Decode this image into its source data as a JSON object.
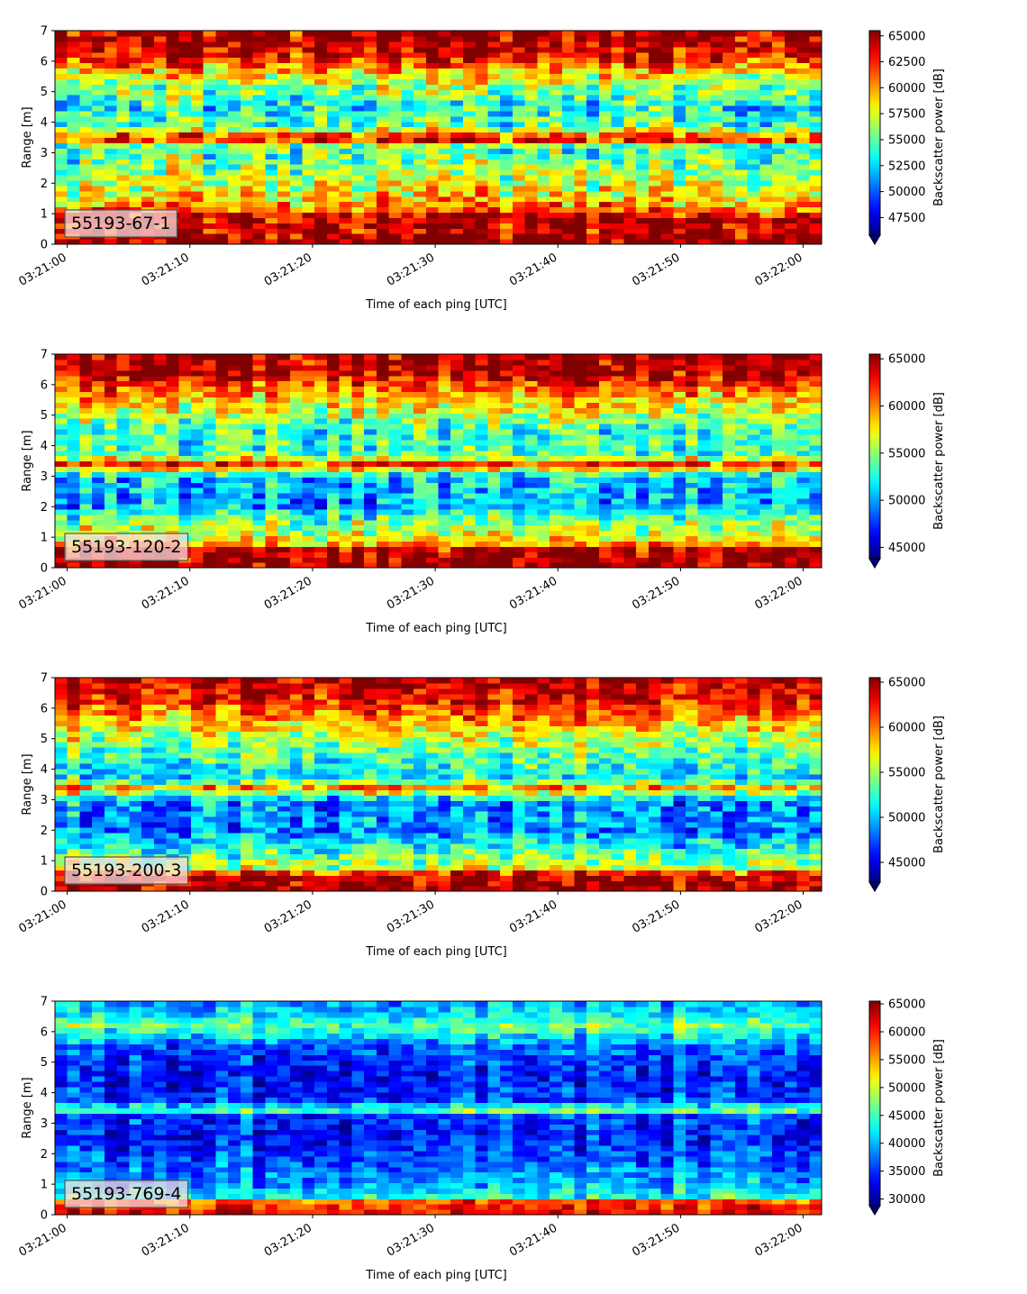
{
  "chart_data": [
    {
      "type": "heatmap",
      "label_box": "55193-67-1",
      "xlabel": "Time of each ping [UTC]",
      "ylabel": "Range [m]",
      "x_ticks": [
        "03:21:00",
        "03:21:10",
        "03:21:20",
        "03:21:30",
        "03:21:40",
        "03:21:50",
        "03:22:00"
      ],
      "x_range_seconds": [
        -1,
        61.5
      ],
      "ylim": [
        0,
        7
      ],
      "y_ticks": [
        0,
        1,
        2,
        3,
        4,
        5,
        6,
        7
      ],
      "colormap": "jet",
      "colorbar": {
        "label": "Backscatter power [dB]",
        "range": [
          45800,
          65500
        ],
        "ticks": [
          47500,
          50000,
          52500,
          55000,
          57500,
          60000,
          62500,
          65000
        ],
        "extend": "min"
      },
      "profile": [
        [
          0,
          0.99
        ],
        [
          0.25,
          0.97
        ],
        [
          0.35,
          0.93
        ],
        [
          0.9,
          0.92
        ],
        [
          1.2,
          0.75
        ],
        [
          1.5,
          0.65
        ],
        [
          2.2,
          0.55
        ],
        [
          3.2,
          0.42
        ],
        [
          3.45,
          0.9
        ],
        [
          3.85,
          0.45
        ],
        [
          4.5,
          0.38
        ],
        [
          5.2,
          0.52
        ],
        [
          5.8,
          0.72
        ],
        [
          6.2,
          0.9
        ],
        [
          7,
          0.97
        ]
      ],
      "noise": 0.3,
      "cell_levels": [
        8,
        14,
        7,
        12,
        16,
        6,
        11,
        13,
        9,
        15,
        5,
        10,
        12,
        8,
        14,
        7
      ],
      "n_pings": 62,
      "n_bins": 40
    },
    {
      "type": "heatmap",
      "label_box": "55193-120-2",
      "xlabel": "Time of each ping [UTC]",
      "ylabel": "Range [m]",
      "x_ticks": [
        "03:21:00",
        "03:21:10",
        "03:21:20",
        "03:21:30",
        "03:21:40",
        "03:21:50",
        "03:22:00"
      ],
      "x_range_seconds": [
        -1,
        61.5
      ],
      "ylim": [
        0,
        7
      ],
      "y_ticks": [
        0,
        1,
        2,
        3,
        4,
        5,
        6,
        7
      ],
      "colormap": "jet",
      "colorbar": {
        "label": "Backscatter power [dB]",
        "range": [
          43800,
          65500
        ],
        "ticks": [
          45000,
          50000,
          55000,
          60000,
          65000
        ],
        "extend": "min"
      },
      "profile": [
        [
          0,
          0.99
        ],
        [
          0.3,
          0.97
        ],
        [
          0.6,
          0.95
        ],
        [
          0.8,
          0.7
        ],
        [
          1.2,
          0.55
        ],
        [
          1.6,
          0.5
        ],
        [
          2.0,
          0.3
        ],
        [
          3.0,
          0.32
        ],
        [
          3.4,
          0.85
        ],
        [
          3.7,
          0.45
        ],
        [
          4.5,
          0.42
        ],
        [
          5.2,
          0.6
        ],
        [
          5.9,
          0.78
        ],
        [
          6.3,
          0.93
        ],
        [
          7,
          0.97
        ]
      ],
      "noise": 0.26,
      "cell_levels": [
        9,
        13,
        6,
        11,
        15,
        7,
        10,
        12,
        8,
        14,
        6,
        11,
        13,
        9,
        12,
        7
      ],
      "n_pings": 62,
      "n_bins": 40
    },
    {
      "type": "heatmap",
      "label_box": "55193-200-3",
      "xlabel": "Time of each ping [UTC]",
      "ylabel": "Range [m]",
      "x_ticks": [
        "03:21:00",
        "03:21:10",
        "03:21:20",
        "03:21:30",
        "03:21:40",
        "03:21:50",
        "03:22:00"
      ],
      "x_range_seconds": [
        -1,
        61.5
      ],
      "ylim": [
        0,
        7
      ],
      "y_ticks": [
        0,
        1,
        2,
        3,
        4,
        5,
        6,
        7
      ],
      "colormap": "jet",
      "colorbar": {
        "label": "Backscatter power [dB]",
        "range": [
          42800,
          65500
        ],
        "ticks": [
          45000,
          50000,
          55000,
          60000,
          65000
        ],
        "extend": "min"
      },
      "profile": [
        [
          0,
          0.97
        ],
        [
          0.35,
          0.95
        ],
        [
          0.55,
          0.92
        ],
        [
          0.8,
          0.55
        ],
        [
          1.3,
          0.45
        ],
        [
          2.0,
          0.25
        ],
        [
          3.0,
          0.28
        ],
        [
          3.4,
          0.75
        ],
        [
          3.7,
          0.35
        ],
        [
          4.5,
          0.45
        ],
        [
          5.2,
          0.6
        ],
        [
          5.9,
          0.78
        ],
        [
          6.4,
          0.9
        ],
        [
          7,
          0.95
        ]
      ],
      "noise": 0.26,
      "cell_levels": [
        7,
        12,
        9,
        14,
        6,
        11,
        13,
        8,
        15,
        10,
        7,
        12,
        9,
        14,
        11,
        8
      ],
      "n_pings": 62,
      "n_bins": 40
    },
    {
      "type": "heatmap",
      "label_box": "55193-769-4",
      "xlabel": "Time of each ping [UTC]",
      "ylabel": "Range [m]",
      "x_ticks": [
        "03:21:00",
        "03:21:10",
        "03:21:20",
        "03:21:30",
        "03:21:40",
        "03:21:50",
        "03:22:00"
      ],
      "x_range_seconds": [
        -1,
        61.5
      ],
      "ylim": [
        0,
        7
      ],
      "y_ticks": [
        0,
        1,
        2,
        3,
        4,
        5,
        6,
        7
      ],
      "colormap": "jet",
      "colorbar": {
        "label": "Backscatter power [dB]",
        "range": [
          28800,
          65500
        ],
        "ticks": [
          30000,
          35000,
          40000,
          45000,
          50000,
          55000,
          60000,
          65000
        ],
        "extend": "min"
      },
      "profile": [
        [
          0,
          0.9
        ],
        [
          0.2,
          0.88
        ],
        [
          0.45,
          0.8
        ],
        [
          0.6,
          0.42
        ],
        [
          1.0,
          0.3
        ],
        [
          1.6,
          0.25
        ],
        [
          2.5,
          0.15
        ],
        [
          3.3,
          0.2
        ],
        [
          3.45,
          0.55
        ],
        [
          3.7,
          0.2
        ],
        [
          4.5,
          0.15
        ],
        [
          5.5,
          0.22
        ],
        [
          6.2,
          0.5
        ],
        [
          6.5,
          0.38
        ],
        [
          7,
          0.3
        ]
      ],
      "noise": 0.2,
      "cell_levels": [
        6,
        9,
        5,
        8,
        11,
        4,
        7,
        10,
        6,
        9,
        5,
        8,
        10,
        6,
        7,
        5
      ],
      "n_pings": 62,
      "n_bins": 40
    }
  ]
}
